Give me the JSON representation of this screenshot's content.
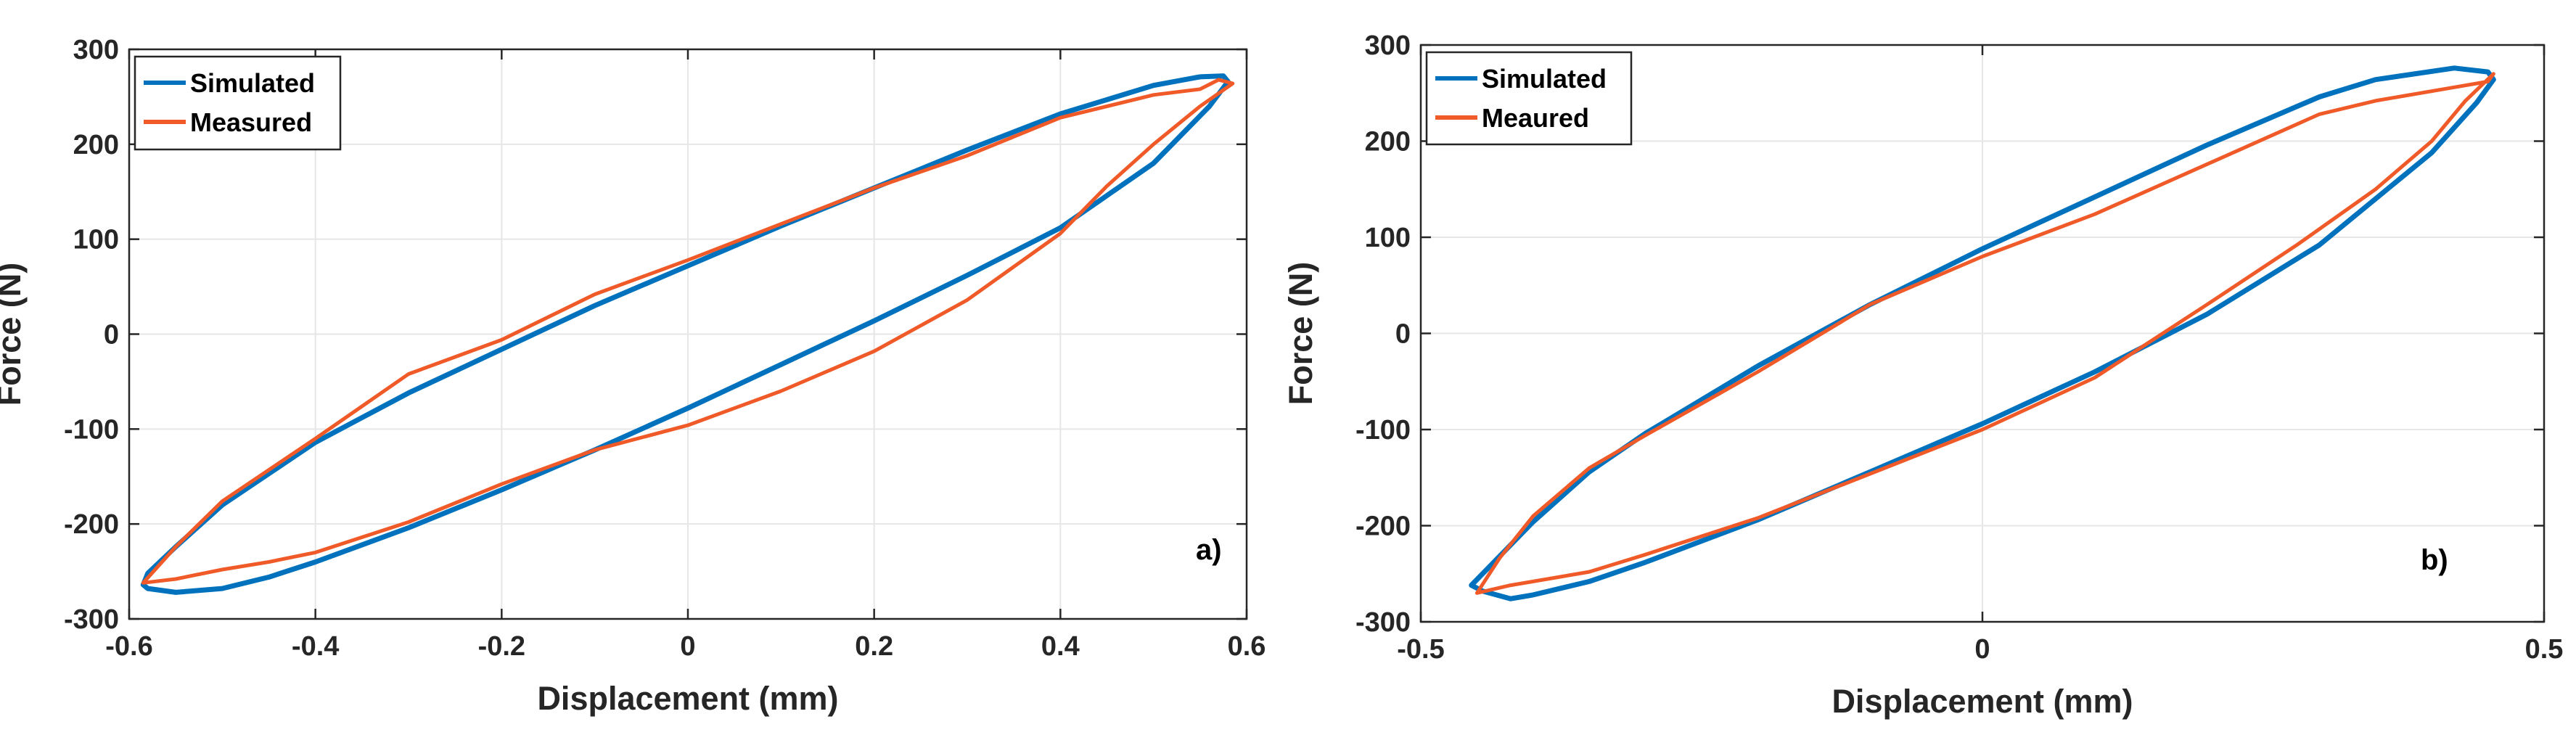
{
  "chart_data": [
    {
      "type": "line",
      "panel_label": "a)",
      "xlabel": "Displacement (mm)",
      "ylabel": "Force (N)",
      "xlim": [
        -0.6,
        0.6
      ],
      "ylim": [
        -300,
        300
      ],
      "xticks": [
        -0.6,
        -0.4,
        -0.2,
        0,
        0.2,
        0.4,
        0.6
      ],
      "xtick_labels": [
        "-0.6",
        "-0.4",
        "-0.2",
        "0",
        "0.2",
        "0.4",
        "0.6"
      ],
      "yticks": [
        -300,
        -200,
        -100,
        0,
        100,
        200,
        300
      ],
      "ytick_labels": [
        "-300",
        "-200",
        "-100",
        "0",
        "100",
        "200",
        "300"
      ],
      "grid": true,
      "legend_position": "top-left",
      "series": [
        {
          "name": "Simulated",
          "color": "#0072BD",
          "x": [
            -0.58,
            -0.55,
            -0.5,
            -0.45,
            -0.4,
            -0.3,
            -0.2,
            -0.1,
            0.0,
            0.1,
            0.2,
            0.3,
            0.4,
            0.5,
            0.56,
            0.58,
            0.575,
            0.55,
            0.5,
            0.4,
            0.3,
            0.2,
            0.1,
            0.0,
            -0.1,
            -0.2,
            -0.3,
            -0.4,
            -0.5,
            -0.55,
            -0.58,
            -0.585,
            -0.58
          ],
          "y": [
            -268,
            -272,
            -268,
            -256,
            -240,
            -204,
            -164,
            -122,
            -78,
            -32,
            14,
            62,
            112,
            180,
            240,
            266,
            272,
            271,
            262,
            232,
            194,
            154,
            114,
            72,
            30,
            -16,
            -62,
            -114,
            -180,
            -224,
            -252,
            -264,
            -268
          ]
        },
        {
          "name": "Measured",
          "color": "#F05A28",
          "x": [
            -0.585,
            -0.55,
            -0.5,
            -0.45,
            -0.4,
            -0.3,
            -0.2,
            -0.1,
            0.0,
            0.1,
            0.2,
            0.3,
            0.4,
            0.45,
            0.5,
            0.55,
            0.585,
            0.57,
            0.55,
            0.5,
            0.4,
            0.3,
            0.2,
            0.1,
            0.0,
            -0.1,
            -0.2,
            -0.3,
            -0.4,
            -0.5,
            -0.55,
            -0.585
          ],
          "y": [
            -262,
            -258,
            -248,
            -240,
            -230,
            -198,
            -158,
            -122,
            -96,
            -60,
            -18,
            36,
            106,
            156,
            200,
            240,
            264,
            268,
            258,
            252,
            228,
            188,
            154,
            116,
            78,
            42,
            -6,
            -42,
            -110,
            -176,
            -224,
            -262
          ]
        }
      ]
    },
    {
      "type": "line",
      "panel_label": "b)",
      "xlabel": "Displacement (mm)",
      "ylabel": "Force (N)",
      "xlim": [
        -0.5,
        0.5
      ],
      "ylim": [
        -300,
        300
      ],
      "xticks": [
        -0.5,
        0,
        0.5
      ],
      "xtick_labels": [
        "-0.5",
        "0",
        "0.5"
      ],
      "yticks": [
        -300,
        -200,
        -100,
        0,
        100,
        200,
        300
      ],
      "ytick_labels": [
        "-300",
        "-200",
        "-100",
        "0",
        "100",
        "200",
        "300"
      ],
      "grid": true,
      "legend_position": "top-left",
      "series": [
        {
          "name": "Simulated",
          "color": "#0072BD",
          "x": [
            -0.445,
            -0.42,
            -0.4,
            -0.35,
            -0.3,
            -0.2,
            -0.1,
            0.0,
            0.1,
            0.2,
            0.3,
            0.4,
            0.44,
            0.455,
            0.45,
            0.42,
            0.35,
            0.3,
            0.2,
            0.1,
            0.0,
            -0.1,
            -0.2,
            -0.3,
            -0.35,
            -0.4,
            -0.44,
            -0.455,
            -0.445
          ],
          "y": [
            -268,
            -276,
            -272,
            -258,
            -238,
            -194,
            -144,
            -94,
            -40,
            20,
            92,
            188,
            240,
            264,
            272,
            276,
            264,
            246,
            196,
            142,
            88,
            30,
            -34,
            -104,
            -144,
            -196,
            -244,
            -262,
            -268
          ]
        },
        {
          "name": "Meaured",
          "color": "#F05A28",
          "x": [
            -0.45,
            -0.42,
            -0.4,
            -0.35,
            -0.3,
            -0.2,
            -0.1,
            0.0,
            0.1,
            0.2,
            0.28,
            0.35,
            0.4,
            0.43,
            0.455,
            0.45,
            0.42,
            0.35,
            0.3,
            0.2,
            0.1,
            0.0,
            -0.1,
            -0.2,
            -0.3,
            -0.35,
            -0.4,
            -0.43,
            -0.45
          ],
          "y": [
            -270,
            -262,
            -258,
            -248,
            -230,
            -192,
            -146,
            -100,
            -46,
            30,
            92,
            150,
            200,
            242,
            270,
            262,
            256,
            242,
            228,
            176,
            124,
            80,
            30,
            -40,
            -106,
            -140,
            -190,
            -234,
            -270
          ]
        }
      ]
    }
  ]
}
